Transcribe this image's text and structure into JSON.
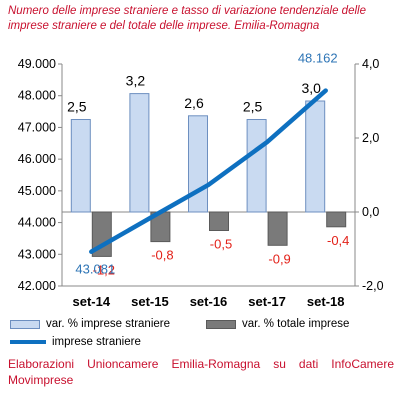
{
  "chart_data": {
    "type": "bar",
    "title": "Numero delle imprese straniere e tasso di variazione tendenziale delle imprese straniere e del totale delle imprese. Emilia-Romagna",
    "categories": [
      "set-14",
      "set-15",
      "set-16",
      "set-17",
      "set-18"
    ],
    "series": [
      {
        "name": "var. % imprese straniere",
        "axis": "right",
        "kind": "bar",
        "color": "#c9daf1",
        "values": [
          2.5,
          3.2,
          2.6,
          2.5,
          3.0
        ],
        "labels": [
          "2,5",
          "3,2",
          "2,6",
          "2,5",
          "3,0"
        ]
      },
      {
        "name": "var. % totale imprese",
        "axis": "right",
        "kind": "bar",
        "color": "#7a7a7a",
        "values": [
          -1.2,
          -0.8,
          -0.5,
          -0.9,
          -0.4
        ],
        "labels": [
          "-1,2",
          "-0,8",
          "-0,5",
          "-0,9",
          "-0,4"
        ]
      },
      {
        "name": "imprese straniere",
        "axis": "left",
        "kind": "line",
        "color": "#0e70c0",
        "values": [
          43081,
          44140,
          45190,
          46540,
          48162
        ],
        "labels": [
          "43.081",
          "",
          "",
          "",
          "48.162"
        ]
      }
    ],
    "y_left": {
      "min": 42000,
      "max": 49000,
      "ticks": [
        42000,
        43000,
        44000,
        45000,
        46000,
        47000,
        48000,
        49000
      ],
      "tick_labels": [
        "42.000",
        "43.000",
        "44.000",
        "45.000",
        "46.000",
        "47.000",
        "48.000",
        "49.000"
      ]
    },
    "y_right": {
      "min": -2.0,
      "max": 4.0,
      "ticks": [
        -2,
        0,
        2,
        4
      ],
      "tick_labels": [
        "-2,0",
        "0,0",
        "2,0",
        "4,0"
      ]
    },
    "grid": false,
    "legend_position": "bottom"
  },
  "source": "Elaborazioni Unioncamere Emilia-Romagna su dati InfoCamere Movimprese"
}
